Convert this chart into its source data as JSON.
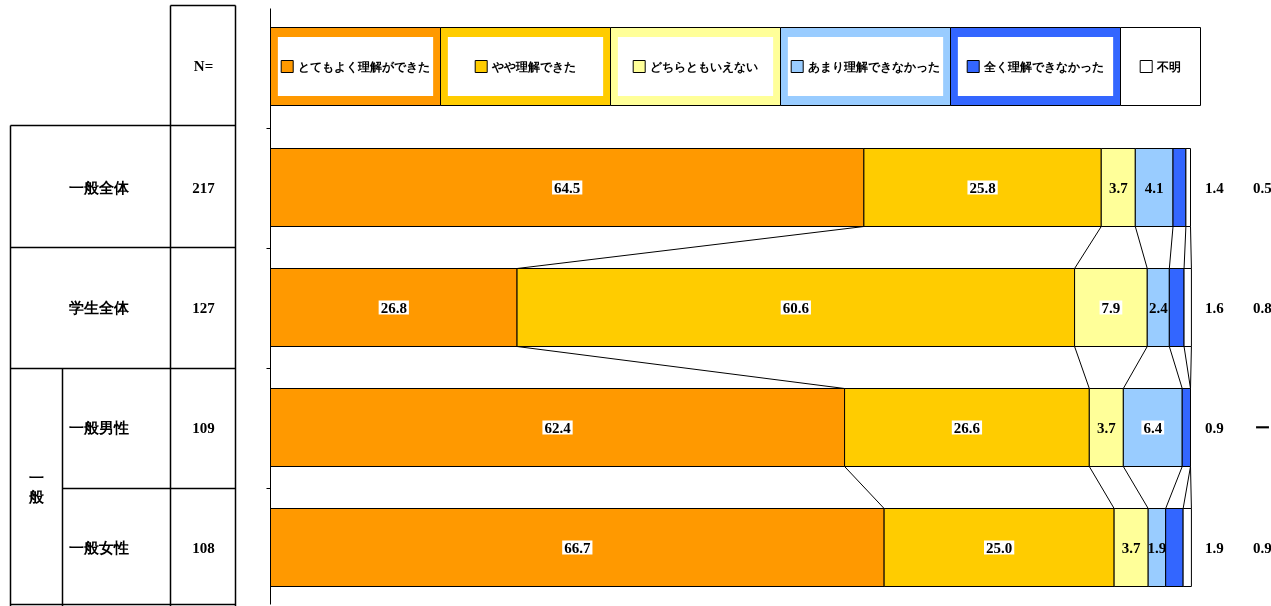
{
  "chart_data": {
    "type": "bar",
    "orientation": "horizontal",
    "stacked": true,
    "legend": "top",
    "data_labels": true,
    "categories": [
      "一般全体",
      "学生全体",
      "一般男性",
      "一般女性"
    ],
    "series": [
      {
        "name": "とてもよく理解ができた",
        "color": "#ff9900",
        "values": [
          64.5,
          26.8,
          62.4,
          66.7
        ]
      },
      {
        "name": "やや理解できた",
        "color": "#ffcc00",
        "values": [
          25.8,
          60.6,
          26.6,
          25.0
        ],
        "value_labels": [
          "25.8",
          "60.6",
          "26.6",
          "25.0"
        ]
      },
      {
        "name": "どちらともいえない",
        "color": "#ffff99",
        "values": [
          3.7,
          7.9,
          3.7,
          3.7
        ]
      },
      {
        "name": "あまり理解できなかった",
        "color": "#99ccff",
        "values": [
          4.1,
          2.4,
          6.4,
          1.9
        ]
      },
      {
        "name": "全く理解できなかった",
        "color": "#3366ff",
        "values": [
          1.4,
          1.6,
          0.9,
          1.9
        ]
      },
      {
        "name": "不明",
        "color": "#ffffff",
        "values": [
          0.5,
          0.8,
          null,
          0.9
        ],
        "value_labels": [
          "0.5",
          "0.8",
          "ー",
          "0.9"
        ]
      }
    ],
    "annotations": [
      "N=",
      "一般",
      "217",
      "127",
      "109",
      "108"
    ]
  }
}
